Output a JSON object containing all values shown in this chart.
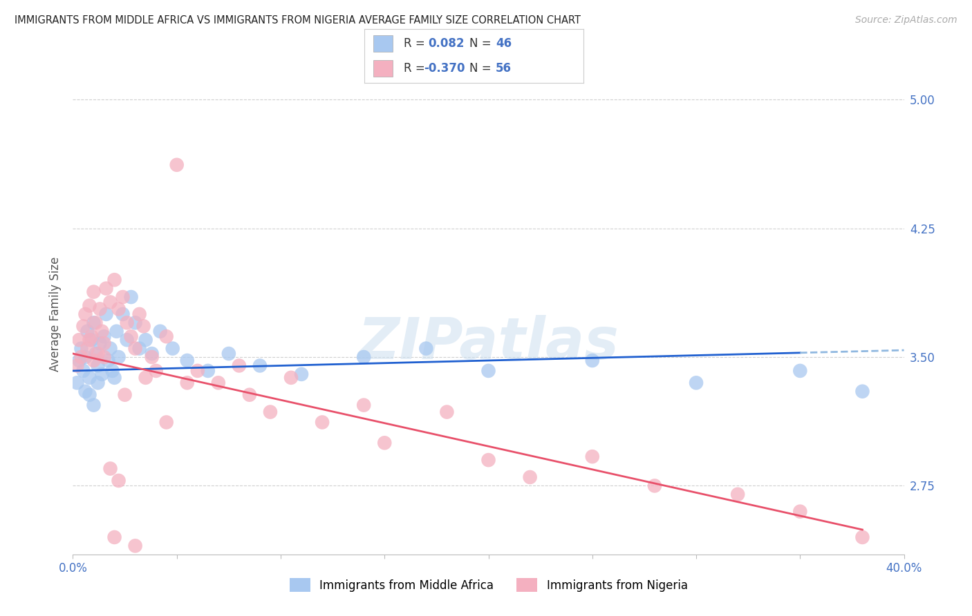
{
  "title": "IMMIGRANTS FROM MIDDLE AFRICA VS IMMIGRANTS FROM NIGERIA AVERAGE FAMILY SIZE CORRELATION CHART",
  "source": "Source: ZipAtlas.com",
  "ylabel": "Average Family Size",
  "xmin": 0.0,
  "xmax": 40.0,
  "ymin": 2.35,
  "ymax": 5.15,
  "yticks": [
    2.75,
    3.5,
    4.25,
    5.0
  ],
  "xticks": [
    0.0,
    5.0,
    10.0,
    15.0,
    20.0,
    25.0,
    30.0,
    35.0,
    40.0
  ],
  "right_ytick_color": "#4472c4",
  "series1_color": "#a8c8f0",
  "series2_color": "#f4b0c0",
  "trendline1_color": "#2060d0",
  "trendline2_color": "#e8506a",
  "trendline1_dashed_color": "#90b8e0",
  "blue_scatter_x": [
    0.2,
    0.3,
    0.4,
    0.5,
    0.6,
    0.7,
    0.8,
    0.9,
    1.0,
    1.1,
    1.2,
    1.3,
    1.4,
    1.5,
    1.6,
    1.7,
    1.8,
    1.9,
    2.0,
    2.1,
    2.2,
    2.4,
    2.6,
    2.8,
    3.0,
    3.2,
    3.5,
    3.8,
    4.2,
    4.8,
    5.5,
    6.5,
    7.5,
    9.0,
    11.0,
    14.0,
    17.0,
    20.0,
    25.0,
    30.0,
    35.0,
    38.0,
    1.0,
    1.2,
    0.8,
    0.6
  ],
  "blue_scatter_y": [
    3.35,
    3.48,
    3.55,
    3.42,
    3.5,
    3.65,
    3.38,
    3.6,
    3.7,
    3.52,
    3.45,
    3.58,
    3.4,
    3.62,
    3.75,
    3.48,
    3.55,
    3.42,
    3.38,
    3.65,
    3.5,
    3.75,
    3.6,
    3.85,
    3.7,
    3.55,
    3.6,
    3.52,
    3.65,
    3.55,
    3.48,
    3.42,
    3.52,
    3.45,
    3.4,
    3.5,
    3.55,
    3.42,
    3.48,
    3.35,
    3.42,
    3.3,
    3.22,
    3.35,
    3.28,
    3.3
  ],
  "pink_scatter_x": [
    0.2,
    0.3,
    0.4,
    0.5,
    0.6,
    0.7,
    0.8,
    0.9,
    1.0,
    1.1,
    1.2,
    1.3,
    1.4,
    1.5,
    1.6,
    1.8,
    2.0,
    2.2,
    2.4,
    2.6,
    2.8,
    3.0,
    3.2,
    3.4,
    3.8,
    4.0,
    4.5,
    5.0,
    5.5,
    6.0,
    7.0,
    8.0,
    8.5,
    9.5,
    10.5,
    12.0,
    14.0,
    15.0,
    18.0,
    20.0,
    22.0,
    25.0,
    28.0,
    32.0,
    35.0,
    38.0,
    2.5,
    3.5,
    1.8,
    2.2,
    1.5,
    4.5,
    0.8,
    1.0,
    2.0,
    3.0
  ],
  "pink_scatter_y": [
    3.45,
    3.6,
    3.5,
    3.68,
    3.75,
    3.55,
    3.8,
    3.62,
    3.88,
    3.7,
    3.52,
    3.78,
    3.65,
    3.58,
    3.9,
    3.82,
    3.95,
    3.78,
    3.85,
    3.7,
    3.62,
    3.55,
    3.75,
    3.68,
    3.5,
    3.42,
    3.62,
    4.62,
    3.35,
    3.42,
    3.35,
    3.45,
    3.28,
    3.18,
    3.38,
    3.12,
    3.22,
    3.0,
    3.18,
    2.9,
    2.8,
    2.92,
    2.75,
    2.7,
    2.6,
    2.45,
    3.28,
    3.38,
    2.85,
    2.78,
    3.5,
    3.12,
    3.6,
    3.48,
    2.45,
    2.4
  ]
}
